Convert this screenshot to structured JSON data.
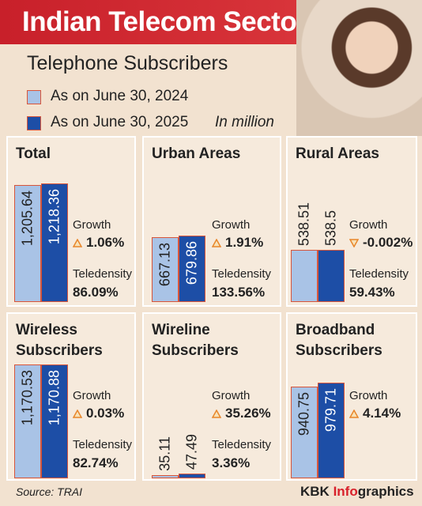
{
  "title": "Indian Telecom Sector",
  "subtitle": "Telephone Subscribers",
  "legend": [
    {
      "name": "As on June 30, 2024",
      "color": "#a9c3e6"
    },
    {
      "name": "As on June 30, 2025",
      "color": "#1d4ea6"
    }
  ],
  "unit_note": "In million",
  "source": "Source: TRAI",
  "credit": {
    "brand": "KBK",
    "accent": "Info",
    "rest": "graphics"
  },
  "chart_data": [
    {
      "type": "bar",
      "title": "Total",
      "values": [
        1205.64,
        1218.36
      ],
      "value_labels": [
        "1,205.64",
        "1,218.36"
      ],
      "growth_label": "Growth",
      "growth": "1.06%",
      "growth_direction": "up",
      "teledensity_label": "Teledensity",
      "teledensity": "86.09%"
    },
    {
      "type": "bar",
      "title": "Urban Areas",
      "values": [
        667.13,
        679.86
      ],
      "growth_label": "Growth",
      "growth": "1.91%",
      "growth_direction": "up",
      "teledensity_label": "Teledensity",
      "teledensity": "133.56%"
    },
    {
      "type": "bar",
      "title": "Rural Areas",
      "values": [
        538.51,
        538.5
      ],
      "growth_label": "Growth",
      "growth": "-0.002%",
      "growth_direction": "down",
      "teledensity_label": "Teledensity",
      "teledensity": "59.43%"
    },
    {
      "type": "bar",
      "title": "Wireless Subscribers",
      "values": [
        1170.53,
        1170.88
      ],
      "value_labels": [
        "1,170.53",
        "1,170.88"
      ],
      "growth_label": "Growth",
      "growth": "0.03%",
      "growth_direction": "up",
      "teledensity_label": "Teledensity",
      "teledensity": "82.74%"
    },
    {
      "type": "bar",
      "title": "Wireline Subscribers",
      "values": [
        35.11,
        47.49
      ],
      "growth_label": "Growth",
      "growth": "35.26%",
      "growth_direction": "up",
      "teledensity_label": "Teledensity",
      "teledensity": "3.36%"
    },
    {
      "type": "bar",
      "title": "Broadband Subscribers",
      "values": [
        940.75,
        979.71
      ],
      "growth_label": "Growth",
      "growth": "4.14%",
      "growth_direction": "up"
    }
  ]
}
